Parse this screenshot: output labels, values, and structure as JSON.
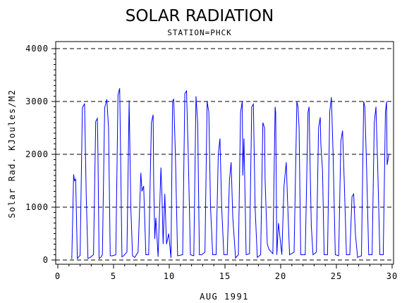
{
  "chart_data": {
    "type": "line",
    "title": "SOLAR RADIATION",
    "subtitle": "STATION=PHCK",
    "xlabel": "AUG 1991",
    "ylabel": "Solar Rad. KJoules/M2",
    "xlim": [
      0,
      30
    ],
    "ylim": [
      -50,
      4050
    ],
    "xticks": [
      0,
      5,
      10,
      15,
      20,
      25,
      30
    ],
    "yticks": [
      0,
      1000,
      2000,
      3000,
      4000
    ],
    "ytick_labels": [
      "0",
      "1000",
      "2000",
      "3000",
      "4000"
    ],
    "grid": "horizontal dashed",
    "line_color": "#0000ff",
    "series": [
      {
        "x": [
          1.25,
          1.42,
          1.5,
          1.6,
          1.75,
          2.0,
          2.2,
          2.4,
          2.55,
          2.7,
          2.9,
          3.2,
          3.4,
          3.55,
          3.6,
          3.7,
          3.85,
          4.0,
          4.2,
          4.4,
          4.55,
          4.7,
          4.9,
          5.2,
          5.4,
          5.55,
          5.6,
          5.75,
          5.9,
          6.2,
          6.4,
          6.55,
          6.7,
          6.9,
          7.2,
          7.45,
          7.55,
          7.7,
          7.9,
          8.15,
          8.4,
          8.55,
          8.6,
          8.7,
          8.8,
          9.0,
          9.25,
          9.35,
          9.45,
          9.6,
          9.75,
          9.95,
          10.15,
          10.3,
          10.4,
          10.55,
          10.75,
          11.2,
          11.4,
          11.55,
          11.7,
          11.9,
          12.2,
          12.4,
          12.55,
          12.7,
          12.9,
          13.2,
          13.4,
          13.55,
          13.7,
          13.9,
          14.2,
          14.4,
          14.55,
          14.7,
          14.9,
          15.2,
          15.4,
          15.55,
          15.7,
          15.95,
          16.2,
          16.4,
          16.55,
          16.6,
          16.7,
          16.9,
          17.2,
          17.4,
          17.55,
          17.7,
          17.9,
          18.2,
          18.4,
          18.55,
          18.6,
          18.8,
          18.95,
          19.3,
          19.5,
          19.55,
          19.65,
          19.8,
          20.1,
          20.3,
          20.5,
          20.6,
          20.8,
          21.2,
          21.45,
          21.55,
          21.65,
          21.8,
          22.2,
          22.45,
          22.55,
          22.6,
          22.75,
          22.9,
          23.2,
          23.4,
          23.55,
          23.6,
          23.75,
          23.9,
          24.2,
          24.4,
          24.55,
          24.7,
          24.9,
          25.2,
          25.4,
          25.55,
          25.7,
          25.9,
          26.2,
          26.4,
          26.55,
          26.7,
          26.9,
          27.25,
          27.45,
          27.55,
          27.7,
          27.9,
          28.2,
          28.4,
          28.55,
          28.6,
          28.7,
          28.9,
          29.2,
          29.4,
          29.5,
          29.55,
          29.7
        ],
        "y": [
          20,
          1620,
          1500,
          1530,
          30,
          90,
          2880,
          2960,
          1200,
          30,
          50,
          100,
          2620,
          2680,
          2000,
          30,
          50,
          100,
          2880,
          3040,
          2500,
          80,
          80,
          100,
          3120,
          3250,
          2500,
          60,
          80,
          150,
          3020,
          1000,
          80,
          50,
          150,
          1650,
          1300,
          1400,
          100,
          100,
          2600,
          2750,
          1500,
          400,
          800,
          60,
          1750,
          1200,
          300,
          1250,
          300,
          500,
          40,
          3000,
          3050,
          2000,
          80,
          100,
          3150,
          3200,
          2000,
          100,
          80,
          3100,
          2600,
          100,
          100,
          150,
          3000,
          2800,
          1000,
          100,
          100,
          2000,
          2300,
          1000,
          100,
          100,
          1500,
          1850,
          800,
          40,
          100,
          2800,
          3000,
          1600,
          2300,
          100,
          120,
          2900,
          2950,
          1000,
          50,
          100,
          2600,
          2500,
          1500,
          300,
          200,
          120,
          2900,
          2800,
          100,
          700,
          100,
          1400,
          1850,
          1200,
          100,
          150,
          3000,
          2900,
          2500,
          100,
          100,
          2800,
          2900,
          2200,
          650,
          100,
          150,
          2500,
          2700,
          2200,
          1700,
          100,
          100,
          2800,
          3080,
          2000,
          100,
          80,
          2250,
          2450,
          1500,
          100,
          100,
          1200,
          1250,
          500,
          50,
          80,
          3000,
          2900,
          1800,
          100,
          100,
          2600,
          2900,
          2500,
          1800,
          100,
          100,
          2800,
          3000,
          1800,
          2000
        ]
      }
    ]
  }
}
